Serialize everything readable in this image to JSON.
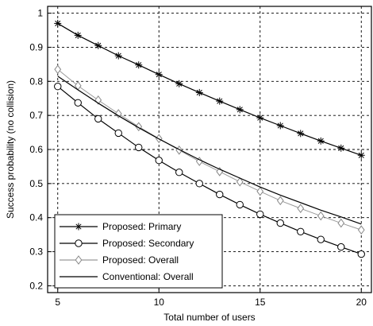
{
  "chart_data": {
    "type": "line",
    "xlabel": "Total number of users",
    "ylabel": "Success probability (no collision)",
    "xlim": [
      4.5,
      20.5
    ],
    "ylim": [
      0.18,
      1.02
    ],
    "x_ticks": [
      5,
      10,
      15,
      20
    ],
    "y_ticks": [
      0.2,
      0.3,
      0.4,
      0.5,
      0.6,
      0.7,
      0.8,
      0.9,
      1
    ],
    "grid": true,
    "legend_position": "bottom-left",
    "x": [
      5,
      6,
      7,
      8,
      9,
      10,
      11,
      12,
      13,
      14,
      15,
      16,
      17,
      18,
      19,
      20
    ],
    "series": [
      {
        "name": "Proposed: Primary",
        "marker": "star",
        "values": [
          0.97,
          0.935,
          0.905,
          0.875,
          0.848,
          0.82,
          0.793,
          0.767,
          0.742,
          0.717,
          0.693,
          0.67,
          0.647,
          0.625,
          0.604,
          0.583
        ]
      },
      {
        "name": "Proposed: Secondary",
        "marker": "circle",
        "values": [
          0.785,
          0.737,
          0.69,
          0.648,
          0.606,
          0.568,
          0.533,
          0.5,
          0.468,
          0.438,
          0.41,
          0.384,
          0.359,
          0.336,
          0.314,
          0.293
        ]
      },
      {
        "name": "Proposed: Overall",
        "marker": "diamond",
        "values": [
          0.835,
          0.787,
          0.745,
          0.705,
          0.667,
          0.632,
          0.598,
          0.565,
          0.535,
          0.505,
          0.477,
          0.45,
          0.427,
          0.405,
          0.384,
          0.364
        ]
      },
      {
        "name": "Conventional: Overall",
        "marker": "none",
        "values": [
          0.815,
          0.775,
          0.736,
          0.699,
          0.664,
          0.631,
          0.6,
          0.57,
          0.542,
          0.516,
          0.49,
          0.466,
          0.444,
          0.422,
          0.402,
          0.381
        ]
      }
    ]
  }
}
